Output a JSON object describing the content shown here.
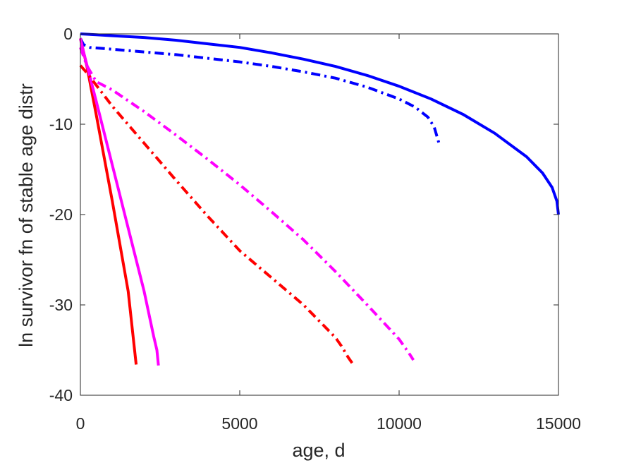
{
  "chart_data": {
    "type": "line",
    "title": "",
    "xlabel": "age, d",
    "ylabel": "ln survivor fn of stable age distr",
    "xlim": [
      0,
      15000
    ],
    "ylim": [
      -40,
      0
    ],
    "x_ticks": [
      0,
      5000,
      10000,
      15000
    ],
    "y_ticks": [
      0,
      -10,
      -20,
      -30,
      -40
    ],
    "x_tick_labels": [
      "0",
      "5000",
      "10000",
      "15000"
    ],
    "y_tick_labels": [
      "0",
      "-10",
      "-20",
      "-30",
      "-40"
    ],
    "grid": false,
    "legend": "none",
    "series": [
      {
        "color": "#0000ff",
        "style": "solid",
        "points": [
          [
            0,
            0
          ],
          [
            500,
            -0.1
          ],
          [
            1000,
            -0.2
          ],
          [
            2000,
            -0.4
          ],
          [
            3000,
            -0.7
          ],
          [
            4000,
            -1.1
          ],
          [
            5000,
            -1.5
          ],
          [
            6000,
            -2.1
          ],
          [
            7000,
            -2.8
          ],
          [
            8000,
            -3.6
          ],
          [
            9000,
            -4.6
          ],
          [
            10000,
            -5.8
          ],
          [
            11000,
            -7.2
          ],
          [
            12000,
            -8.9
          ],
          [
            13000,
            -11.0
          ],
          [
            14000,
            -13.6
          ],
          [
            14500,
            -15.4
          ],
          [
            14800,
            -17.0
          ],
          [
            14950,
            -18.5
          ],
          [
            15000,
            -20.0
          ]
        ]
      },
      {
        "color": "#0000ff",
        "style": "dashdot",
        "points": [
          [
            0,
            -0.5
          ],
          [
            100,
            -1.2
          ],
          [
            300,
            -1.5
          ],
          [
            1000,
            -1.7
          ],
          [
            2000,
            -2.0
          ],
          [
            3000,
            -2.3
          ],
          [
            4000,
            -2.7
          ],
          [
            5000,
            -3.1
          ],
          [
            6000,
            -3.6
          ],
          [
            7000,
            -4.2
          ],
          [
            8000,
            -4.9
          ],
          [
            9000,
            -5.9
          ],
          [
            10000,
            -7.2
          ],
          [
            10500,
            -8.1
          ],
          [
            10900,
            -9.2
          ],
          [
            11100,
            -10.3
          ],
          [
            11250,
            -12.1
          ]
        ]
      },
      {
        "color": "#ff0000",
        "style": "solid",
        "points": [
          [
            0,
            -0.5
          ],
          [
            200,
            -3.5
          ],
          [
            500,
            -9.0
          ],
          [
            1000,
            -18.5
          ],
          [
            1500,
            -28.5
          ],
          [
            1750,
            -36.6
          ]
        ]
      },
      {
        "color": "#ff00ff",
        "style": "solid",
        "points": [
          [
            0,
            -0.5
          ],
          [
            100,
            -2.0
          ],
          [
            500,
            -7.5
          ],
          [
            1000,
            -14.5
          ],
          [
            1500,
            -21.5
          ],
          [
            2000,
            -28.5
          ],
          [
            2300,
            -33.5
          ],
          [
            2400,
            -35.0
          ],
          [
            2450,
            -36.7
          ]
        ]
      },
      {
        "color": "#ff0000",
        "style": "dashdot",
        "points": [
          [
            0,
            -3.5
          ],
          [
            200,
            -4.3
          ],
          [
            1000,
            -8.0
          ],
          [
            2000,
            -12.1
          ],
          [
            3000,
            -16.2
          ],
          [
            4000,
            -20.2
          ],
          [
            5000,
            -24.0
          ],
          [
            6000,
            -27.0
          ],
          [
            7000,
            -30.0
          ],
          [
            8000,
            -33.6
          ],
          [
            8200,
            -34.6
          ],
          [
            8400,
            -35.8
          ],
          [
            8560,
            -36.6
          ]
        ]
      },
      {
        "color": "#ff00ff",
        "style": "dashdot",
        "points": [
          [
            0,
            -1.5
          ],
          [
            200,
            -3.5
          ],
          [
            500,
            -5.3
          ],
          [
            1000,
            -6.2
          ],
          [
            2000,
            -8.6
          ],
          [
            3000,
            -11.2
          ],
          [
            4000,
            -13.9
          ],
          [
            5000,
            -16.7
          ],
          [
            6000,
            -19.7
          ],
          [
            7000,
            -22.8
          ],
          [
            8000,
            -26.3
          ],
          [
            9000,
            -30.0
          ],
          [
            10000,
            -33.8
          ],
          [
            10300,
            -35.3
          ],
          [
            10450,
            -36.1
          ]
        ]
      }
    ]
  }
}
